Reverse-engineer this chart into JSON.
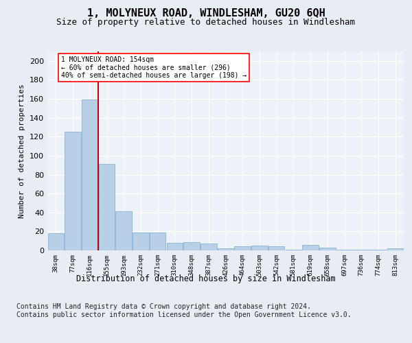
{
  "title": "1, MOLYNEUX ROAD, WINDLESHAM, GU20 6QH",
  "subtitle": "Size of property relative to detached houses in Windlesham",
  "xlabel": "Distribution of detached houses by size in Windlesham",
  "ylabel": "Number of detached properties",
  "categories": [
    "38sqm",
    "77sqm",
    "116sqm",
    "155sqm",
    "193sqm",
    "232sqm",
    "271sqm",
    "310sqm",
    "348sqm",
    "387sqm",
    "426sqm",
    "464sqm",
    "503sqm",
    "542sqm",
    "581sqm",
    "619sqm",
    "658sqm",
    "697sqm",
    "736sqm",
    "774sqm",
    "813sqm"
  ],
  "values": [
    18,
    125,
    159,
    91,
    41,
    19,
    19,
    8,
    9,
    7,
    2,
    4,
    5,
    4,
    1,
    6,
    3,
    1,
    1,
    1,
    2
  ],
  "bar_color": "#b8cfe8",
  "bar_edge_color": "#7aaad0",
  "vline_color": "#cc0000",
  "annotation_text": "1 MOLYNEUX ROAD: 154sqm\n← 60% of detached houses are smaller (296)\n40% of semi-detached houses are larger (198) →",
  "ylim": [
    0,
    210
  ],
  "yticks": [
    0,
    20,
    40,
    60,
    80,
    100,
    120,
    140,
    160,
    180,
    200
  ],
  "footer": "Contains HM Land Registry data © Crown copyright and database right 2024.\nContains public sector information licensed under the Open Government Licence v3.0.",
  "bg_color": "#e8ecf5",
  "plot_bg": "#edf1f8",
  "grid_color": "#ffffff"
}
